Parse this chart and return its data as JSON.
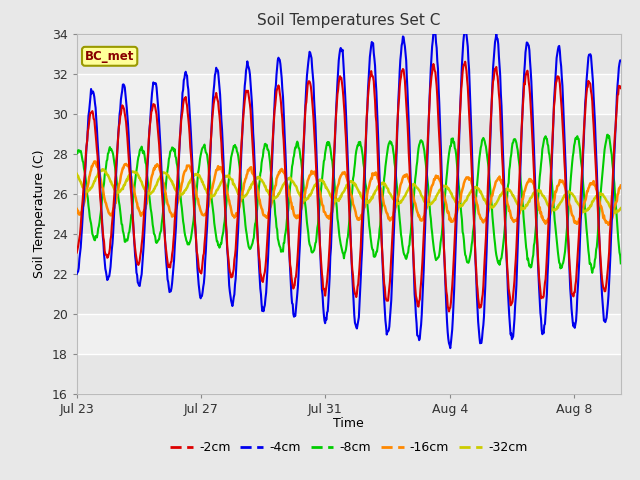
{
  "title": "Soil Temperatures Set C",
  "xlabel": "Time",
  "ylabel": "Soil Temperature (C)",
  "ylim": [
    16,
    34
  ],
  "yticks": [
    16,
    18,
    20,
    22,
    24,
    26,
    28,
    30,
    32,
    34
  ],
  "line_colors": {
    "-2cm": "#dd0000",
    "-4cm": "#0000ee",
    "-8cm": "#00cc00",
    "-16cm": "#ff8800",
    "-32cm": "#cccc00"
  },
  "annotation_text": "BC_met",
  "annotation_color": "#880000",
  "annotation_bg": "#ffff99",
  "annotation_border": "#999900",
  "x_tick_labels": [
    "Jul 23",
    "Jul 27",
    "Jul 31",
    "Aug 4",
    "Aug 8"
  ],
  "x_tick_positions": [
    0,
    4,
    8,
    12,
    16
  ],
  "total_days": 17.5,
  "n_points": 840,
  "legend_labels": [
    "-2cm",
    "-4cm",
    "-8cm",
    "-16cm",
    "-32cm"
  ],
  "fig_facecolor": "#e8e8e8",
  "ax_facecolor": "#f2f2f2",
  "grid_color": "#ffffff",
  "alt_band_color": "#e0e0e0"
}
